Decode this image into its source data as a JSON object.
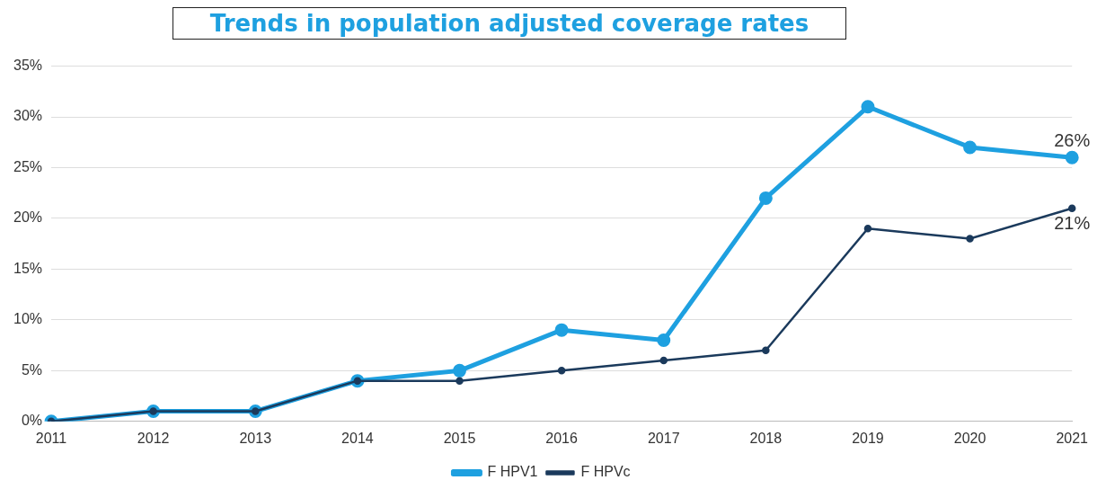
{
  "chart_data": {
    "type": "line",
    "title": "Trends in population adjusted coverage rates",
    "categories": [
      "2011",
      "2012",
      "2013",
      "2014",
      "2015",
      "2016",
      "2017",
      "2018",
      "2019",
      "2020",
      "2021"
    ],
    "series": [
      {
        "name": "F HPV1",
        "color": "#1ea0e0",
        "values": [
          0,
          1,
          1,
          4,
          5,
          9,
          8,
          22,
          31,
          27,
          26
        ],
        "value_labels": [
          null,
          null,
          null,
          null,
          null,
          null,
          null,
          null,
          null,
          null,
          "26%"
        ]
      },
      {
        "name": "F HPVc",
        "color": "#1b3a5c",
        "values": [
          0,
          1,
          1,
          4,
          4,
          5,
          6,
          7,
          19,
          18,
          21
        ],
        "value_labels": [
          null,
          null,
          null,
          null,
          null,
          null,
          null,
          null,
          null,
          null,
          "21%"
        ]
      }
    ],
    "ylim": [
      0,
      35
    ],
    "yticks": [
      {
        "value": 0,
        "label": "0%"
      },
      {
        "value": 5,
        "label": "5%"
      },
      {
        "value": 10,
        "label": "10%"
      },
      {
        "value": 15,
        "label": "15%"
      },
      {
        "value": 20,
        "label": "20%"
      },
      {
        "value": 25,
        "label": "25%"
      },
      {
        "value": 30,
        "label": "30%"
      },
      {
        "value": 35,
        "label": "35%"
      }
    ],
    "grid": "y",
    "legend": "bottom",
    "marker": "circle"
  }
}
